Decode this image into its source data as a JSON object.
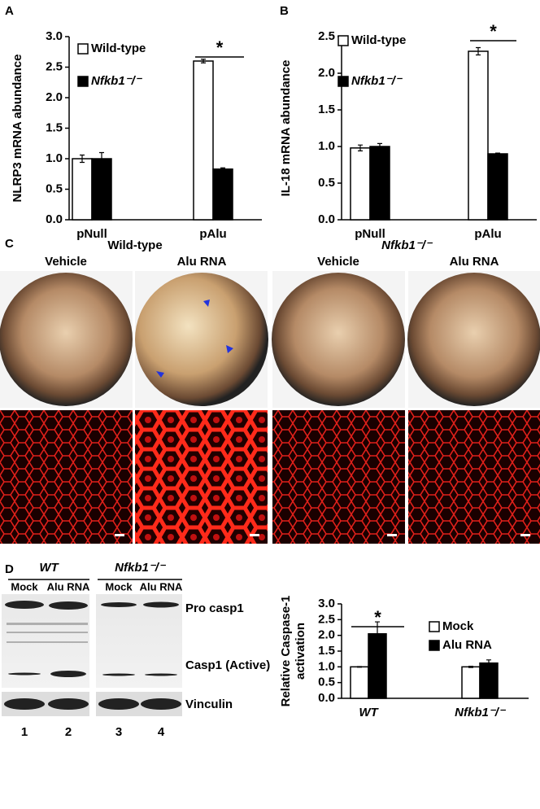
{
  "chart_data": [
    {
      "type": "bar",
      "panel": "A",
      "ylabel": "NLRP3 mRNA abundance",
      "categories": [
        "pNull",
        "pAlu"
      ],
      "series": [
        {
          "name": "Wild-type",
          "color": "#ffffff",
          "values": [
            1.0,
            2.6
          ],
          "errors": [
            0.06,
            0.03
          ]
        },
        {
          "name": "Nfkb1⁻/⁻",
          "color": "#000000",
          "values": [
            1.0,
            0.83
          ],
          "errors": [
            0.1,
            0.02
          ]
        }
      ],
      "ylim": [
        0,
        3.0
      ],
      "yticks": [
        {
          "value": 0,
          "label": "0.0"
        },
        0.5,
        {
          "value": 1,
          "label": "1.0"
        },
        1.5,
        {
          "value": 2,
          "label": "2.0"
        },
        2.5,
        {
          "value": 3,
          "label": "3.0"
        }
      ],
      "legend": "upper left",
      "annotations": [
        "*"
      ]
    },
    {
      "type": "bar",
      "panel": "B",
      "ylabel": "IL-18 mRNA abundance",
      "categories": [
        "pNull",
        "pAlu"
      ],
      "series": [
        {
          "name": "Wild-type",
          "color": "#ffffff",
          "values": [
            0.98,
            2.3
          ],
          "errors": [
            0.04,
            0.05
          ]
        },
        {
          "name": "Nfkb1⁻/⁻",
          "color": "#000000",
          "values": [
            1.0,
            0.9
          ],
          "errors": [
            0.04,
            0.01
          ]
        }
      ],
      "ylim": [
        0,
        2.5
      ],
      "yticks": [
        {
          "value": 0,
          "label": "0.0"
        },
        0.5,
        {
          "value": 1,
          "label": "1.0"
        },
        1.5,
        {
          "value": 2,
          "label": "2.0"
        },
        2.5
      ],
      "legend": "upper left",
      "annotations": [
        "*"
      ]
    },
    {
      "type": "bar",
      "ylabel": [
        "Relative Caspase-1",
        "activation"
      ],
      "categories": [
        "WT",
        "Nfkb1⁻/⁻"
      ],
      "series": [
        {
          "name": "Mock",
          "color": "#ffffff",
          "values": [
            1.0,
            1.0
          ],
          "errors": [
            0.01,
            0.02
          ]
        },
        {
          "name": "Alu RNA",
          "color": "#000000",
          "values": [
            2.05,
            1.12
          ],
          "errors": [
            0.38,
            0.1
          ]
        }
      ],
      "ylim": [
        0,
        3.0
      ],
      "yticks": [
        {
          "value": 0,
          "label": "0.0"
        },
        0.5,
        {
          "value": 1,
          "label": "1.0"
        },
        1.5,
        {
          "value": 2,
          "label": "2.0"
        },
        2.5,
        {
          "value": 3,
          "label": "3.0"
        }
      ],
      "legend": "upper right",
      "annotations": [
        "*"
      ]
    }
  ],
  "panel_c": {
    "label": "C",
    "groups": [
      "Wild-type",
      "Nfkb1⁻/⁻"
    ],
    "conditions": [
      "Vehicle",
      "Alu RNA",
      "Vehicle",
      "Alu RNA"
    ]
  },
  "panel_d": {
    "label": "D",
    "groups": [
      "WT",
      "Nfkb1⁻/⁻"
    ],
    "lanes": [
      "Mock",
      "Alu RNA",
      "Mock",
      "Alu RNA"
    ],
    "bands": [
      "Pro casp1",
      "Casp1 (Active)",
      "Vinculin"
    ],
    "lane_numbers": [
      "1",
      "2",
      "3",
      "4"
    ]
  }
}
